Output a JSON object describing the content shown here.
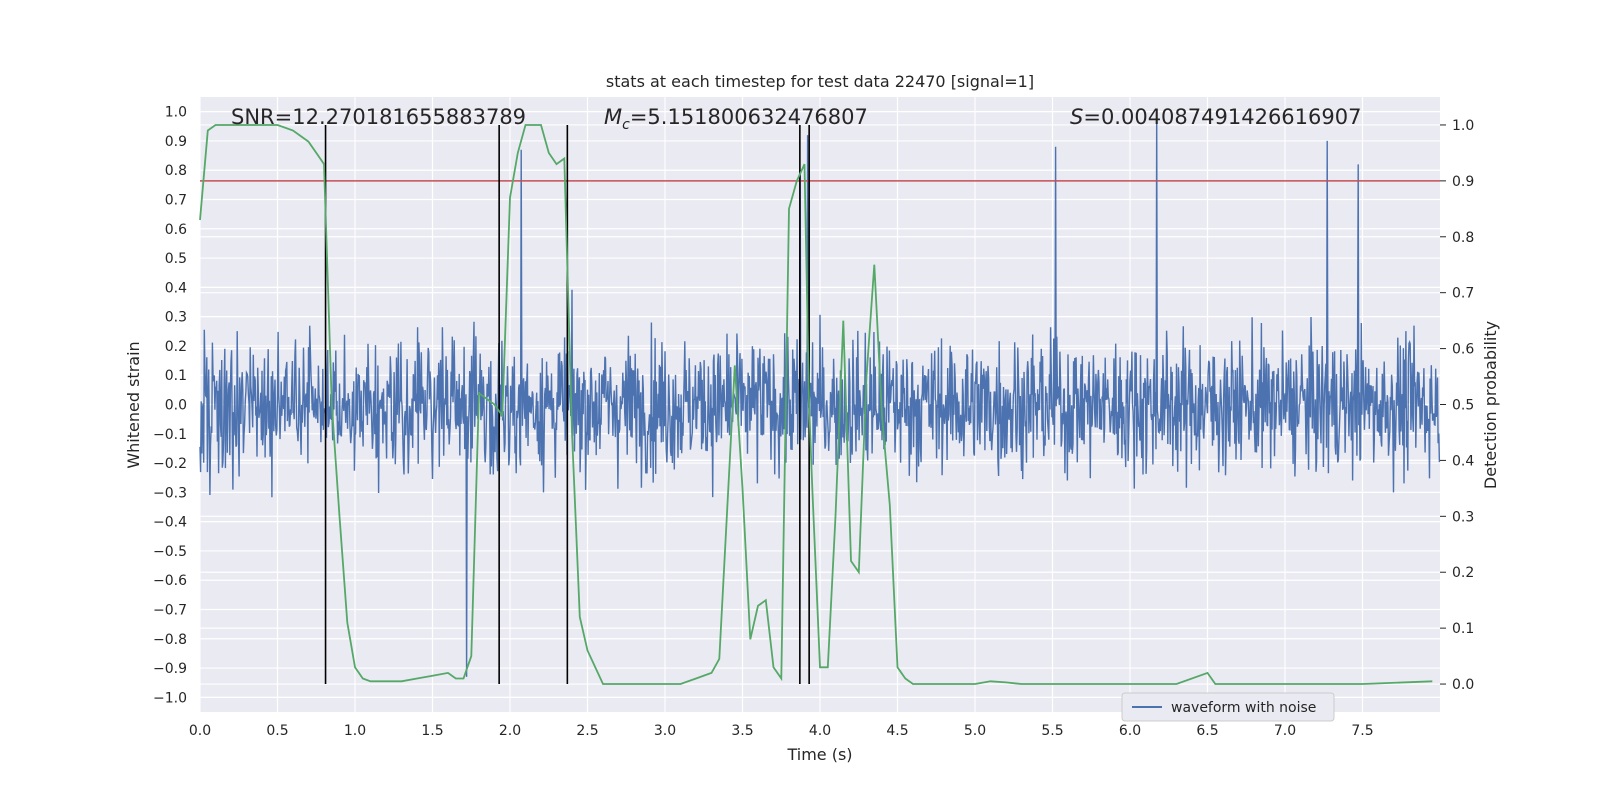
{
  "chart_data": {
    "type": "line",
    "title": "stats at each timestep for test data 22470 [signal=1]",
    "xlabel": "Time (s)",
    "ylabel_left": "Whitened strain",
    "ylabel_right": "Detection probability",
    "xlim": [
      0.0,
      8.0
    ],
    "ylim_left": [
      -1.05,
      1.05
    ],
    "ylim_right": [
      -0.05,
      1.05
    ],
    "x_ticks": [
      "0.0",
      "0.5",
      "1.0",
      "1.5",
      "2.0",
      "2.5",
      "3.0",
      "3.5",
      "4.0",
      "4.5",
      "5.0",
      "5.5",
      "6.0",
      "6.5",
      "7.0",
      "7.5"
    ],
    "y_left_ticks": [
      "1.0",
      "0.9",
      "0.8",
      "0.7",
      "0.6",
      "0.5",
      "0.4",
      "0.3",
      "0.2",
      "0.1",
      "0.0",
      "−0.1",
      "−0.2",
      "−0.3",
      "−0.4",
      "−0.5",
      "−0.6",
      "−0.7",
      "−0.8",
      "−0.9",
      "−1.0"
    ],
    "y_right_ticks": [
      "0.0",
      "0.1",
      "0.2",
      "0.3",
      "0.4",
      "0.5",
      "0.6",
      "0.7",
      "0.8",
      "0.9",
      "1.0"
    ],
    "annotations": {
      "snr": "SNR=12.270181655883789",
      "mc_symbol": "M",
      "mc_sub": "c",
      "mc_value": "=5.151800632476807",
      "s_symbol": "S",
      "s_value": "=0.004087491426616907"
    },
    "threshold_right": 0.9,
    "vertical_lines_x": [
      0.81,
      1.93,
      2.37,
      3.87,
      3.93
    ],
    "waveform": {
      "name": "waveform with noise",
      "color": "#4c72b0",
      "sample_count": 2000,
      "noise_envelope_typical": 0.45,
      "peaks": [
        [
          5.52,
          0.88
        ],
        [
          6.17,
          1.0
        ],
        [
          7.27,
          0.9
        ],
        [
          7.47,
          0.82
        ],
        [
          3.92,
          0.92
        ],
        [
          2.07,
          0.87
        ],
        [
          1.72,
          -0.93
        ],
        [
          3.87,
          0.8
        ]
      ]
    },
    "probability": {
      "color": "#55a868",
      "x": [
        0.0,
        0.05,
        0.1,
        0.2,
        0.3,
        0.4,
        0.5,
        0.6,
        0.65,
        0.7,
        0.75,
        0.8,
        0.85,
        0.9,
        0.95,
        1.0,
        1.05,
        1.1,
        1.2,
        1.3,
        1.4,
        1.5,
        1.6,
        1.65,
        1.7,
        1.75,
        1.8,
        1.85,
        1.9,
        1.95,
        2.0,
        2.05,
        2.1,
        2.2,
        2.25,
        2.3,
        2.35,
        2.4,
        2.45,
        2.5,
        2.6,
        2.7,
        2.8,
        3.0,
        3.1,
        3.2,
        3.3,
        3.35,
        3.45,
        3.5,
        3.55,
        3.6,
        3.65,
        3.7,
        3.75,
        3.8,
        3.85,
        3.9,
        3.93,
        3.95,
        4.0,
        4.05,
        4.1,
        4.15,
        4.2,
        4.25,
        4.3,
        4.35,
        4.4,
        4.45,
        4.5,
        4.55,
        4.6,
        4.7,
        4.8,
        5.0,
        5.1,
        5.2,
        5.3,
        5.5,
        5.7,
        5.9,
        6.0,
        6.1,
        6.3,
        6.5,
        6.55,
        6.6,
        6.7,
        7.0,
        7.5,
        7.95
      ],
      "y": [
        0.83,
        0.99,
        1.0,
        1.0,
        1.0,
        1.0,
        1.0,
        0.99,
        0.98,
        0.97,
        0.95,
        0.93,
        0.5,
        0.3,
        0.11,
        0.03,
        0.01,
        0.005,
        0.005,
        0.005,
        0.01,
        0.015,
        0.02,
        0.01,
        0.01,
        0.05,
        0.52,
        0.51,
        0.5,
        0.48,
        0.87,
        0.95,
        1.0,
        1.0,
        0.95,
        0.93,
        0.94,
        0.45,
        0.12,
        0.06,
        0.0,
        0.0,
        0.0,
        0.0,
        0.0,
        0.01,
        0.02,
        0.045,
        0.57,
        0.35,
        0.08,
        0.14,
        0.15,
        0.03,
        0.01,
        0.85,
        0.9,
        0.93,
        0.5,
        0.35,
        0.03,
        0.03,
        0.3,
        0.65,
        0.22,
        0.2,
        0.55,
        0.75,
        0.48,
        0.32,
        0.03,
        0.01,
        0.0,
        0.0,
        0.0,
        0.0,
        0.005,
        0.003,
        0.0,
        0.0,
        0.0,
        0.0,
        0.0,
        0.0,
        0.0,
        0.02,
        0.0,
        0.0,
        0.0,
        0.0,
        0.0,
        0.005
      ]
    },
    "legend": {
      "label": "waveform with noise",
      "placement": "lower-center"
    }
  }
}
